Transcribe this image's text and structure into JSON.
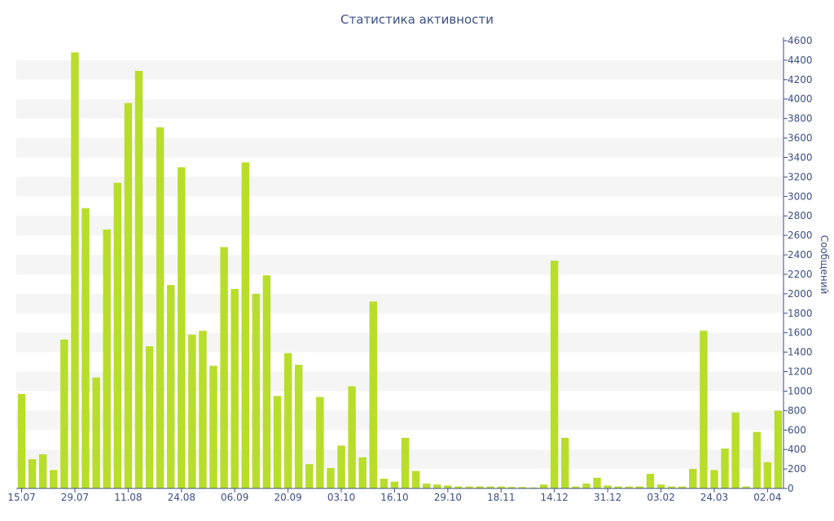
{
  "chart_data": {
    "type": "bar",
    "title": "Статистика активности",
    "ylabel": "Сообщений",
    "xlabel": "",
    "ylim": [
      0,
      4600
    ],
    "y_axis_side": "right",
    "y_ticks": [
      0,
      200,
      400,
      600,
      800,
      1000,
      1200,
      1400,
      1600,
      1800,
      2000,
      2200,
      2400,
      2600,
      2800,
      3000,
      3200,
      3400,
      3600,
      3800,
      4000,
      4200,
      4400,
      4600
    ],
    "x_tick_labels": [
      {
        "label": "15.07",
        "index": 0
      },
      {
        "label": "29.07",
        "index": 5
      },
      {
        "label": "11.08",
        "index": 10
      },
      {
        "label": "24.08",
        "index": 15
      },
      {
        "label": "06.09",
        "index": 20
      },
      {
        "label": "20.09",
        "index": 25
      },
      {
        "label": "03.10",
        "index": 30
      },
      {
        "label": "16.10",
        "index": 35
      },
      {
        "label": "29.10",
        "index": 40
      },
      {
        "label": "18.11",
        "index": 45
      },
      {
        "label": "14.12",
        "index": 50
      },
      {
        "label": "31.12",
        "index": 55
      },
      {
        "label": "03.02",
        "index": 60
      },
      {
        "label": "24.03",
        "index": 65
      },
      {
        "label": "02.04",
        "index": 70
      }
    ],
    "values": [
      970,
      300,
      350,
      190,
      1530,
      4480,
      2880,
      1140,
      2660,
      3140,
      3960,
      4290,
      1460,
      3710,
      2090,
      3300,
      1580,
      1620,
      1260,
      2480,
      2050,
      3350,
      2000,
      2190,
      950,
      1390,
      1270,
      250,
      940,
      210,
      440,
      1050,
      320,
      1920,
      100,
      70,
      520,
      180,
      50,
      40,
      30,
      20,
      20,
      20,
      20,
      20,
      15,
      15,
      10,
      40,
      2340,
      520,
      20,
      50,
      110,
      30,
      20,
      20,
      20,
      150,
      40,
      20,
      20,
      200,
      1620,
      190,
      410,
      780,
      20,
      580,
      270,
      800
    ],
    "grid": "horizontal-bands",
    "colors": {
      "bar": "#b8dd2b",
      "band": "#f5f5f5",
      "axis": "#3d4f86",
      "text": "#3d4f86"
    }
  }
}
